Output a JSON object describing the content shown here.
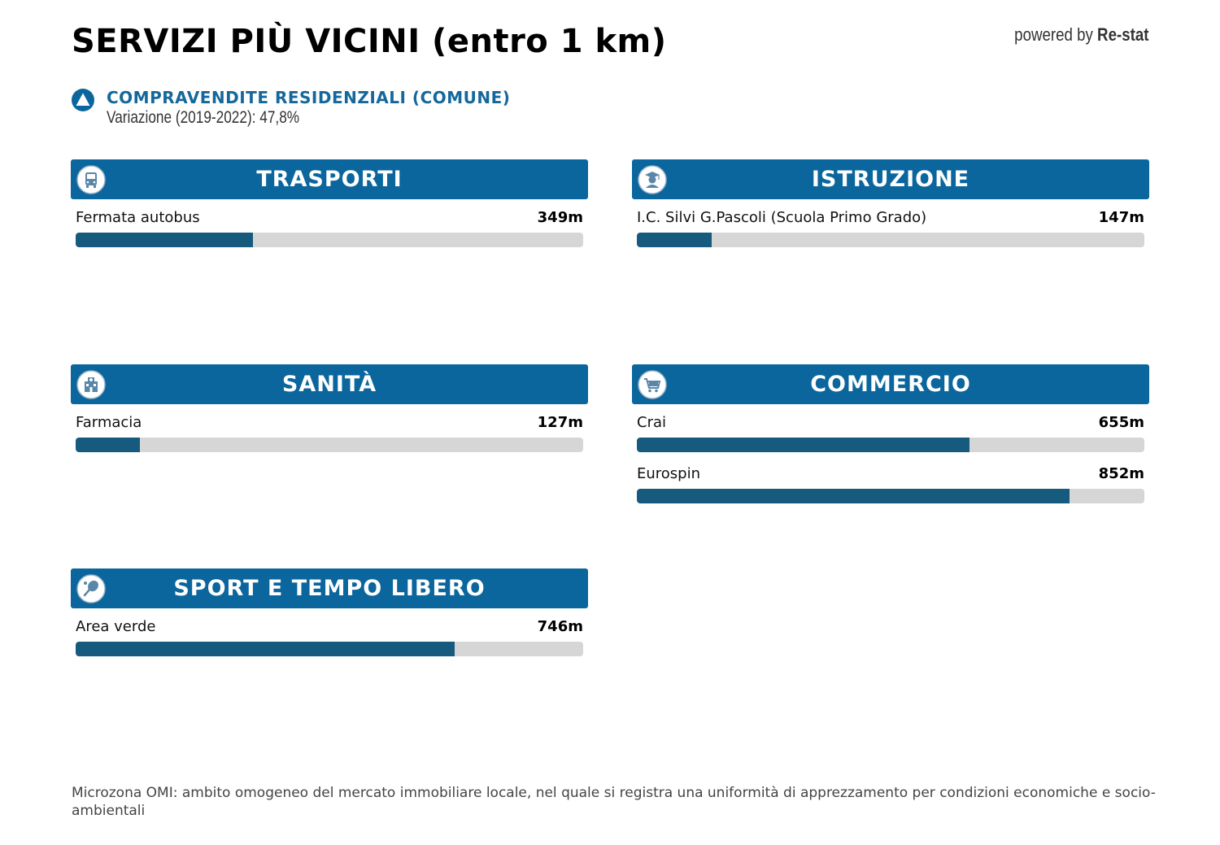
{
  "title": "SERVIZI PIÙ VICINI (entro 1 km)",
  "powered_by": {
    "prefix": "powered by",
    "brand": "Re-stat"
  },
  "stat": {
    "label": "COMPRAVENDITE RESIDENZIALI (COMUNE)",
    "subtitle": "Variazione (2019-2022): 47,8%",
    "icon": "triangle-up-icon"
  },
  "panels": [
    {
      "title": "TRASPORTI",
      "icon": "bus-icon",
      "items": [
        {
          "name": "Fermata autobus",
          "distance": "349m",
          "meters": 349
        }
      ]
    },
    {
      "title": "ISTRUZIONE",
      "icon": "student-icon",
      "items": [
        {
          "name": "I.C. Silvi G.Pascoli (Scuola Primo Grado)",
          "distance": "147m",
          "meters": 147
        }
      ]
    },
    {
      "title": "SANITÀ",
      "icon": "hospital-icon",
      "items": [
        {
          "name": "Farmacia",
          "distance": "127m",
          "meters": 127
        }
      ]
    },
    {
      "title": "COMMERCIO",
      "icon": "cart-icon",
      "items": [
        {
          "name": "Crai",
          "distance": "655m",
          "meters": 655
        },
        {
          "name": "Eurospin",
          "distance": "852m",
          "meters": 852
        }
      ]
    },
    {
      "title": "SPORT E TEMPO LIBERO",
      "icon": "racket-icon",
      "items": [
        {
          "name": "Area verde",
          "distance": "746m",
          "meters": 746
        }
      ]
    }
  ],
  "max_distance_m": 1000,
  "colors": {
    "header": "#0b669d",
    "bar_fill": "#165a7e",
    "bar_track": "#d6d6d6",
    "accent_text": "#15689b"
  },
  "footnote": "Microzona OMI: ambito omogeneo del mercato immobiliare locale, nel quale si registra una uniformità di apprezzamento per condizioni economiche e socio-ambientali"
}
